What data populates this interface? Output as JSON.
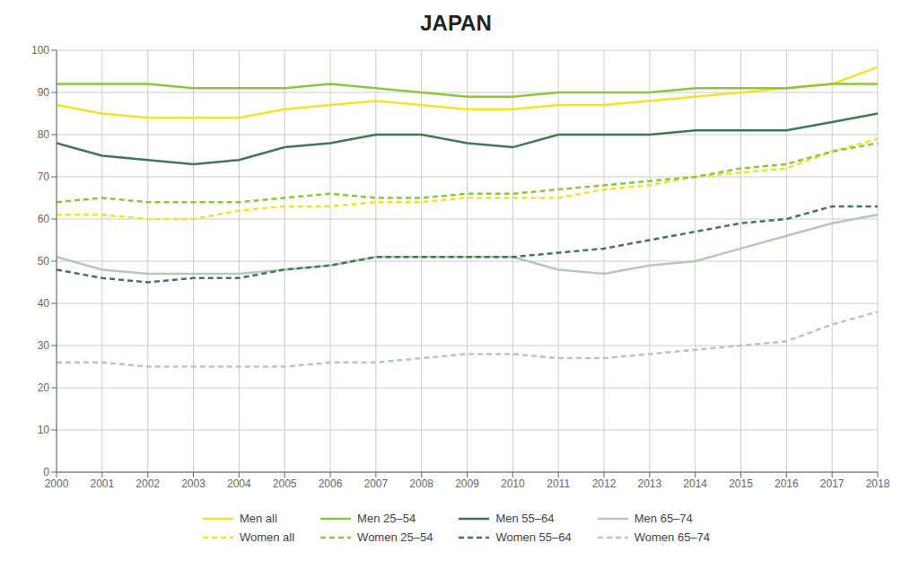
{
  "chart_data": {
    "type": "line",
    "title": "JAPAN",
    "x": [
      2000,
      2001,
      2002,
      2003,
      2004,
      2005,
      2006,
      2007,
      2008,
      2009,
      2010,
      2011,
      2012,
      2013,
      2014,
      2015,
      2016,
      2017,
      2018
    ],
    "series": [
      {
        "name": "Men all",
        "color": "#f5e227",
        "line_style": "solid",
        "values": [
          87,
          85,
          84,
          84,
          84,
          86,
          87,
          88,
          87,
          86,
          86,
          87,
          87,
          88,
          89,
          90,
          91,
          92,
          96
        ]
      },
      {
        "name": "Men 25–54",
        "color": "#8cc63e",
        "line_style": "solid",
        "values": [
          92,
          92,
          92,
          91,
          91,
          91,
          92,
          91,
          90,
          89,
          89,
          90,
          90,
          90,
          91,
          91,
          91,
          92,
          92
        ]
      },
      {
        "name": "Men 55–64",
        "color": "#3d7a52",
        "line_style": "solid",
        "values": [
          78,
          75,
          74,
          73,
          74,
          77,
          78,
          80,
          80,
          78,
          77,
          80,
          80,
          80,
          81,
          81,
          81,
          83,
          85
        ]
      },
      {
        "name": "Men 65–74",
        "color": "#b5c9b5",
        "line_style": "solid",
        "values": [
          51,
          48,
          47,
          47,
          47,
          48,
          49,
          51,
          51,
          51,
          51,
          48,
          47,
          49,
          50,
          53,
          56,
          59,
          61
        ]
      },
      {
        "name": "Women all",
        "color": "#f5e227",
        "line_style": "dashed",
        "values": [
          61,
          61,
          60,
          60,
          62,
          63,
          63,
          64,
          64,
          65,
          65,
          65,
          67,
          68,
          70,
          71,
          72,
          76,
          79
        ]
      },
      {
        "name": "Women 25–54",
        "color": "#8cc63e",
        "line_style": "dashed",
        "values": [
          64,
          65,
          64,
          64,
          64,
          65,
          66,
          65,
          65,
          66,
          66,
          67,
          68,
          69,
          70,
          72,
          73,
          76,
          78
        ]
      },
      {
        "name": "Women 55–64",
        "color": "#3d7a52",
        "line_style": "dashed",
        "values": [
          48,
          46,
          45,
          46,
          46,
          48,
          49,
          51,
          51,
          51,
          51,
          52,
          53,
          55,
          57,
          59,
          60,
          63,
          63
        ]
      },
      {
        "name": "Women 65–74",
        "color": "#b5c9b5",
        "line_style": "dashed",
        "values": [
          26,
          26,
          25,
          25,
          25,
          25,
          26,
          26,
          27,
          28,
          28,
          27,
          27,
          28,
          29,
          30,
          31,
          35,
          38
        ]
      }
    ],
    "xlim": [
      2000,
      2018
    ],
    "xticks": [
      2000,
      2001,
      2002,
      2003,
      2004,
      2005,
      2006,
      2007,
      2008,
      2009,
      2010,
      2011,
      2012,
      2013,
      2014,
      2015,
      2016,
      2017,
      2018
    ],
    "ylim": [
      0,
      100
    ],
    "yticks": [
      0,
      10,
      20,
      30,
      40,
      50,
      60,
      70,
      80,
      90,
      100
    ],
    "grid": true,
    "legend": "bottom"
  }
}
